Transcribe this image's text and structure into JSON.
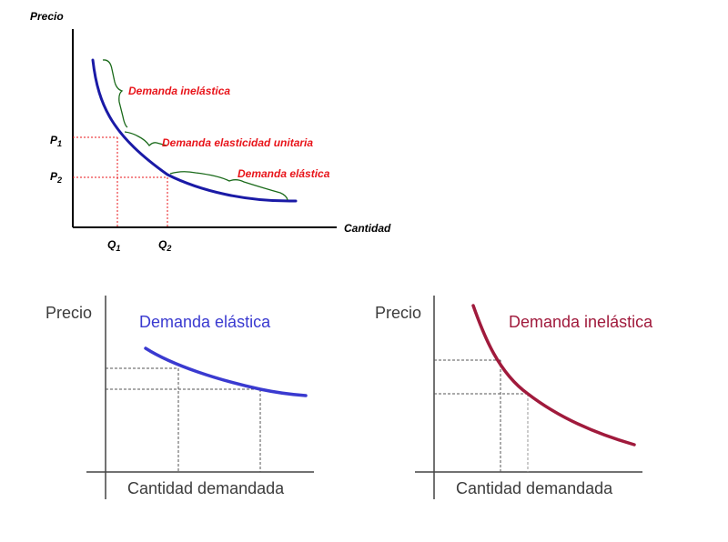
{
  "top": {
    "y_axis_label": "Precio",
    "x_axis_label": "Cantidad",
    "p1": {
      "main": "P",
      "sub": "1"
    },
    "p2": {
      "main": "P",
      "sub": "2"
    },
    "q1": {
      "main": "Q",
      "sub": "1"
    },
    "q2": {
      "main": "Q",
      "sub": "2"
    },
    "annotations": {
      "inelastic": "Demanda inelástica",
      "unitary": "Demanda elasticidad unitaria",
      "elastic": "Demanda elástica"
    },
    "colors": {
      "curve": "#1a1aa6",
      "annotation": "#e8141a",
      "brace": "#1a6a1a",
      "guides": "#e8141a"
    }
  },
  "left": {
    "y_axis_label": "Precio",
    "x_axis_label": "Cantidad demandada",
    "title": "Demanda elástica",
    "colors": {
      "curve": "#3a3ad0",
      "guides": "#444444"
    }
  },
  "right": {
    "y_axis_label": "Precio",
    "x_axis_label": "Cantidad demandada",
    "title": "Demanda inelástica",
    "colors": {
      "curve": "#a01a3c",
      "guides": "#444444"
    }
  }
}
